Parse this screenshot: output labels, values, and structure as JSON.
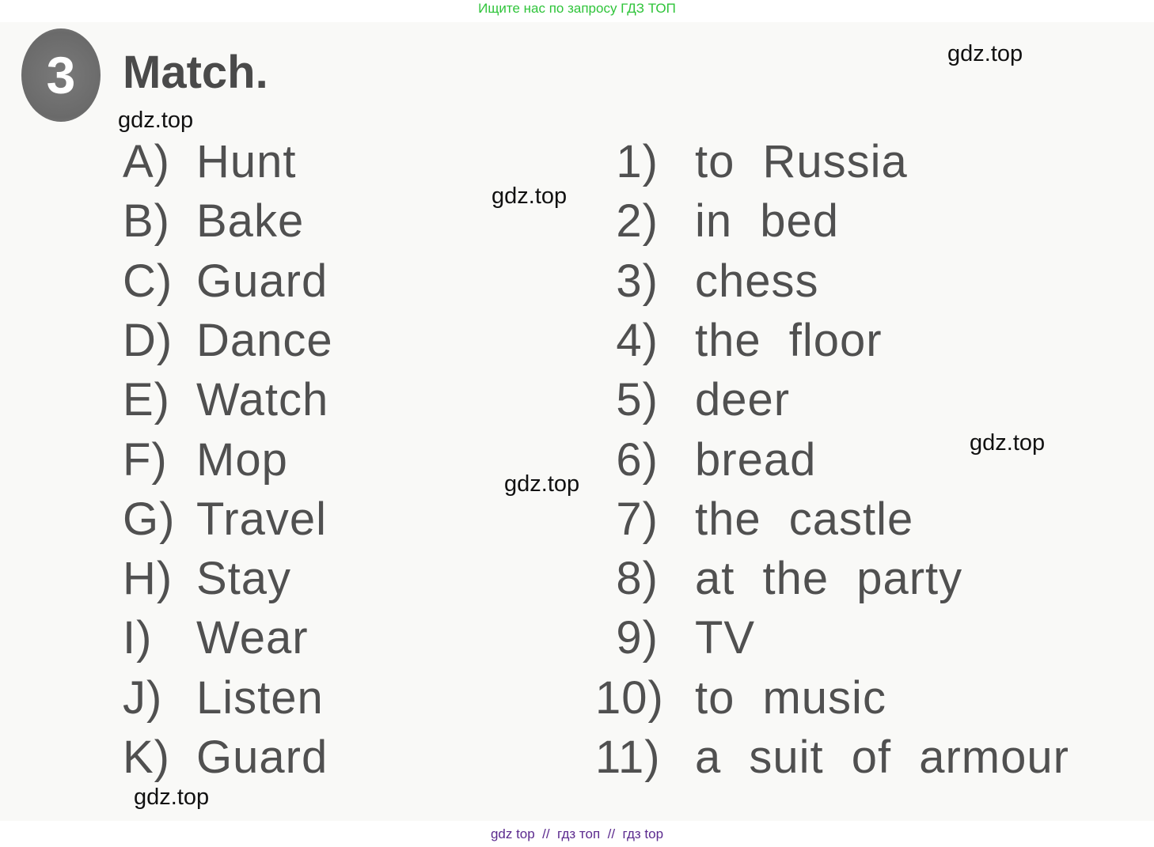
{
  "top_banner": "Ищите нас по запросу ГДЗ ТОП",
  "exercise": {
    "number": "3",
    "title": "Match."
  },
  "left": [
    {
      "label": "A)",
      "word": "Hunt"
    },
    {
      "label": "B)",
      "word": "Bake"
    },
    {
      "label": "C)",
      "word": "Guard"
    },
    {
      "label": "D)",
      "word": "Dance"
    },
    {
      "label": "E)",
      "word": "Watch"
    },
    {
      "label": "F)",
      "word": "Mop"
    },
    {
      "label": "G)",
      "word": "Travel"
    },
    {
      "label": "H)",
      "word": "Stay"
    },
    {
      "label": "I)",
      "word": "Wear"
    },
    {
      "label": "J)",
      "word": "Listen"
    },
    {
      "label": "K)",
      "word": "Guard"
    }
  ],
  "right": [
    {
      "label": "1)",
      "phrase": "to Russia"
    },
    {
      "label": "2)",
      "phrase": "in bed"
    },
    {
      "label": "3)",
      "phrase": "chess"
    },
    {
      "label": "4)",
      "phrase": "the floor"
    },
    {
      "label": "5)",
      "phrase": "deer"
    },
    {
      "label": "6)",
      "phrase": "bread"
    },
    {
      "label": "7)",
      "phrase": "the castle"
    },
    {
      "label": "8)",
      "phrase": "at the party"
    },
    {
      "label": "9)",
      "phrase": "TV"
    },
    {
      "label": "10)",
      "phrase": "to music"
    },
    {
      "label": "11)",
      "phrase": "a suit of armour"
    }
  ],
  "watermarks": [
    "gdz.top",
    "gdz.top",
    "gdz.top",
    "gdz.top",
    "gdz.top",
    "gdz.top"
  ],
  "footer": "gdz top  //  гдз топ  //  гдз top"
}
